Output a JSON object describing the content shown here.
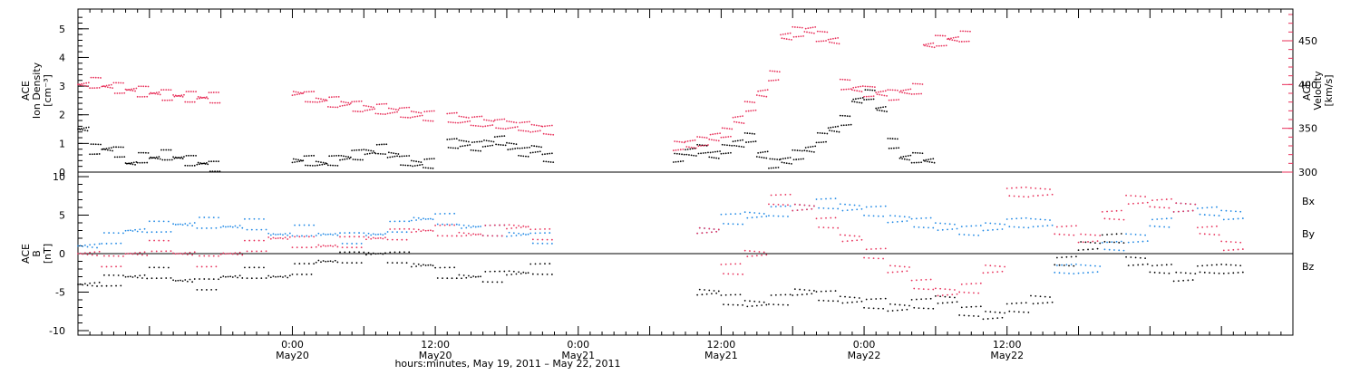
{
  "chart_data": [
    {
      "type": "scatter",
      "panel": "top",
      "ylabel_left_lines": [
        "ACE",
        "Ion Density",
        "[cm⁻³]"
      ],
      "ylabel_right_lines": [
        "ACE",
        "Velocity",
        "[km/s]"
      ],
      "ylim": [
        0,
        5.5
      ],
      "ylim_right": [
        300,
        480
      ],
      "yticks": [
        "0",
        "1",
        "2",
        "3",
        "4",
        "5"
      ],
      "yticks_right": [
        "300",
        "350",
        "400",
        "450"
      ],
      "xlabel": "hours:minutes, May 19, 2011 – May 22, 2011",
      "x_hours": [
        0,
        18,
        24,
        30,
        36,
        42,
        48,
        54,
        60,
        66,
        72,
        78,
        84,
        90,
        96,
        102
      ],
      "colors": {
        "density": "#000000",
        "velocity": "#e8305a"
      },
      "series": [
        {
          "role": "density",
          "x": [
            0,
            1,
            2,
            3,
            4,
            5,
            6,
            7,
            8,
            9,
            10,
            11,
            12,
            13,
            14,
            15,
            16,
            17,
            18,
            19,
            20,
            21,
            22,
            23,
            24,
            25,
            26,
            27,
            28,
            29,
            30,
            31,
            32,
            33,
            34,
            35,
            36,
            37,
            38,
            39,
            40,
            41,
            42,
            43,
            44,
            45,
            46,
            47,
            48,
            49,
            50,
            51,
            52,
            53,
            54,
            55,
            56,
            57,
            58,
            59,
            60,
            61,
            62,
            63,
            64,
            65,
            66,
            67,
            68,
            69,
            70,
            71,
            72,
            73,
            74
          ],
          "y": [
            1.5,
            0.8,
            0.8,
            0.7,
            0.3,
            0.5,
            0.5,
            0.6,
            0.5,
            0.4,
            0.3,
            0.2,
            null,
            null,
            null,
            null,
            null,
            null,
            0.4,
            0.4,
            0.3,
            0.4,
            0.5,
            0.6,
            0.7,
            0.8,
            0.6,
            0.4,
            0.3,
            0.3,
            null,
            1.0,
            1.0,
            0.9,
            1.0,
            1.1,
            0.9,
            0.7,
            0.8,
            0.5,
            null,
            null,
            null,
            null,
            null,
            null,
            null,
            null,
            null,
            null,
            0.5,
            0.7,
            0.8,
            0.6,
            0.8,
            1.0,
            1.2,
            0.6,
            0.3,
            0.4,
            0.6,
            0.8,
            1.2,
            1.5,
            1.8,
            2.5,
            2.7,
            2.2,
            1.0,
            0.5,
            0.5,
            0.4,
            null,
            null,
            null
          ]
        },
        {
          "role": "velocity",
          "x": [
            0,
            1,
            2,
            3,
            4,
            5,
            6,
            7,
            8,
            9,
            10,
            11,
            12,
            13,
            14,
            15,
            16,
            17,
            18,
            19,
            20,
            21,
            22,
            23,
            24,
            25,
            26,
            27,
            28,
            29,
            30,
            31,
            32,
            33,
            34,
            35,
            36,
            37,
            38,
            39,
            40,
            41,
            42,
            43,
            44,
            45,
            46,
            47,
            48,
            49,
            50,
            51,
            52,
            53,
            54,
            55,
            56,
            57,
            58,
            59,
            60,
            61,
            62,
            63,
            64,
            65,
            66,
            67,
            68,
            69,
            70,
            71,
            72,
            73,
            74
          ],
          "y": [
            400,
            402,
            398,
            396,
            394,
            392,
            390,
            388,
            387,
            386,
            385,
            385,
            null,
            null,
            null,
            null,
            null,
            null,
            390,
            386,
            382,
            380,
            378,
            375,
            373,
            372,
            370,
            368,
            366,
            364,
            null,
            362,
            360,
            358,
            356,
            355,
            354,
            352,
            350,
            348,
            null,
            null,
            null,
            null,
            null,
            null,
            null,
            null,
            null,
            null,
            330,
            332,
            335,
            340,
            345,
            360,
            375,
            390,
            410,
            455,
            460,
            462,
            455,
            450,
            400,
            395,
            392,
            390,
            388,
            392,
            395,
            445,
            450,
            452,
            455
          ]
        }
      ]
    },
    {
      "type": "scatter",
      "panel": "bottom",
      "ylabel_lines": [
        "ACE",
        "B",
        "[nT]"
      ],
      "ylim": [
        -10,
        10
      ],
      "yticks": [
        "-10",
        "-5",
        "0",
        "5",
        "10"
      ],
      "legend": [
        "Bx",
        "By",
        "Bz"
      ],
      "colors": {
        "Bx": "#000000",
        "By": "#1e88e5",
        "Bz": "#e8305a"
      },
      "series": [
        {
          "name": "Bx",
          "x": [
            0,
            2,
            4,
            6,
            8,
            10,
            12,
            14,
            16,
            18,
            20,
            22,
            24,
            26,
            28,
            30,
            32,
            34,
            36,
            38,
            40,
            42,
            44,
            46,
            48,
            50,
            52,
            54,
            56,
            58,
            60,
            62,
            64,
            66,
            68,
            70,
            72,
            74,
            76,
            78,
            80,
            82,
            84,
            86,
            88,
            90,
            92,
            94,
            96
          ],
          "y": [
            -4,
            -3.5,
            -3,
            -2.5,
            -3.5,
            -4,
            -3,
            -2.5,
            -3,
            -2,
            -1,
            -0.5,
            0,
            -0.5,
            -1.5,
            -2.5,
            -3,
            -3,
            -2.5,
            -2,
            null,
            null,
            null,
            null,
            null,
            null,
            -5,
            -6,
            -6.5,
            -6,
            -5,
            -5.5,
            -6,
            -6.5,
            -7,
            -6.5,
            -6,
            -7.5,
            -8,
            -7,
            -6,
            -1,
            1,
            2,
            -1,
            -2,
            -3,
            -2,
            -2
          ]
        },
        {
          "name": "By",
          "x": [
            0,
            2,
            4,
            6,
            8,
            10,
            12,
            14,
            16,
            18,
            20,
            22,
            24,
            26,
            28,
            30,
            32,
            34,
            36,
            38,
            40,
            42,
            44,
            46,
            48,
            50,
            52,
            54,
            56,
            58,
            60,
            62,
            64,
            66,
            68,
            70,
            72,
            74,
            76,
            78,
            80,
            82,
            84,
            86,
            88,
            90,
            92,
            94,
            96
          ],
          "y": [
            1,
            2,
            3,
            3.5,
            3.8,
            4,
            3.5,
            3.8,
            2.5,
            3,
            2.5,
            2,
            2.5,
            3.5,
            4.5,
            4.5,
            3.5,
            3,
            2.5,
            2,
            null,
            null,
            null,
            null,
            null,
            null,
            3,
            4.5,
            5,
            5.5,
            6,
            6.5,
            6,
            5.5,
            4.5,
            4,
            3.5,
            3,
            3.5,
            4,
            4,
            -2,
            -2,
            1,
            2,
            4,
            6,
            5.5,
            5
          ]
        },
        {
          "name": "Bz",
          "x": [
            0,
            2,
            4,
            6,
            8,
            10,
            12,
            14,
            16,
            18,
            20,
            22,
            24,
            26,
            28,
            30,
            32,
            34,
            36,
            38,
            40,
            42,
            44,
            46,
            48,
            50,
            52,
            54,
            56,
            58,
            60,
            62,
            64,
            66,
            68,
            70,
            72,
            74,
            76,
            78,
            80,
            82,
            84,
            86,
            88,
            90,
            92,
            94,
            96
          ],
          "y": [
            0,
            -1,
            0,
            1,
            0,
            -1,
            0,
            1,
            2,
            1.5,
            1,
            1.5,
            2,
            2.5,
            3,
            3,
            2.5,
            3,
            3.5,
            2.5,
            null,
            null,
            null,
            null,
            null,
            null,
            3,
            -2,
            0,
            7,
            6,
            4,
            2,
            0,
            -2,
            -4,
            -5,
            -4.5,
            -2,
            8,
            8,
            3,
            2,
            5,
            7,
            6.5,
            6,
            3,
            1
          ]
        }
      ]
    }
  ]
}
